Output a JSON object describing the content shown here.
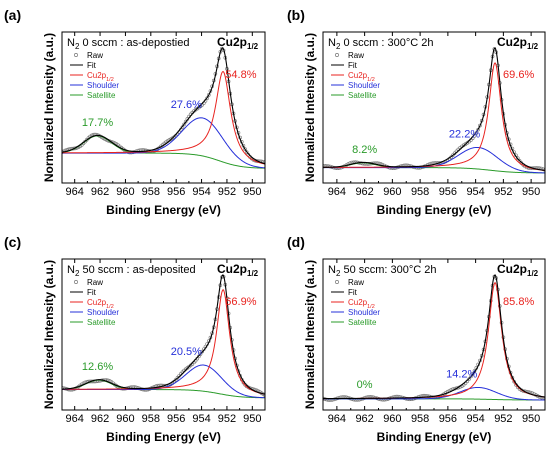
{
  "chart_data": [
    {
      "type": "line",
      "panel_label": "(a)",
      "condition": {
        "prefix": "N",
        "sub": "2",
        "rest": " 0 sccm : as-depostied"
      },
      "peak_title": {
        "base": "Cu2p",
        "sub": "1/2"
      },
      "xlabel": "Binding Energy (eV)",
      "ylabel": "Normalized Intensity (a.u.)",
      "xlim": [
        965,
        949
      ],
      "xticks": [
        "964",
        "962",
        "960",
        "958",
        "956",
        "954",
        "952",
        "950"
      ],
      "legend": [
        "Raw",
        "Fit",
        "Cu2p1/2",
        "Shoulder",
        "Satellite"
      ],
      "annotations": [
        {
          "text": "17.7%",
          "component": "Satellite",
          "x": 962.2
        },
        {
          "text": "27.6%",
          "component": "Shoulder",
          "x": 955.2
        },
        {
          "text": "54.8%",
          "component": "Cu2p1/2",
          "x": 950.9
        }
      ],
      "components": {
        "baseline": {
          "left": 0.22,
          "right": 0.05
        },
        "satellite": {
          "center": 962.2,
          "amplitude": 0.19,
          "width": 1.1
        },
        "shoulder": {
          "center": 953.9,
          "amplitude": 0.42,
          "width": 1.6
        },
        "main": {
          "center": 952.3,
          "amplitude": 1.0,
          "width": 0.72
        }
      }
    },
    {
      "type": "line",
      "panel_label": "(b)",
      "condition": {
        "prefix": "N",
        "sub": "2",
        "rest": " 0 sccm : 300°C 2h"
      },
      "peak_title": {
        "base": "Cu2p",
        "sub": "1/2"
      },
      "xlabel": "Binding Energy (eV)",
      "ylabel": "Normalized Intensity (a.u.)",
      "xlim": [
        965,
        949
      ],
      "xticks": [
        "964",
        "962",
        "960",
        "958",
        "956",
        "954",
        "952",
        "950"
      ],
      "legend": [
        "Raw",
        "Fit",
        "Cu2p1/2",
        "Shoulder",
        "Satellite"
      ],
      "annotations": [
        {
          "text": "8.2%",
          "component": "Satellite",
          "x": 962.0
        },
        {
          "text": "22.2%",
          "component": "Shoulder",
          "x": 954.8
        },
        {
          "text": "69.6%",
          "component": "Cu2p1/2",
          "x": 950.9
        }
      ],
      "components": {
        "baseline": {
          "left": 0.05,
          "right": 0.0
        },
        "satellite": {
          "center": 962.1,
          "amplitude": 0.045,
          "width": 0.9
        },
        "shoulder": {
          "center": 953.8,
          "amplitude": 0.2,
          "width": 1.4
        },
        "main": {
          "center": 952.6,
          "amplitude": 1.0,
          "width": 0.55
        }
      }
    },
    {
      "type": "line",
      "panel_label": "(c)",
      "condition": {
        "prefix": "N",
        "sub": "2",
        "rest": " 50 sccm : as-deposited"
      },
      "peak_title": {
        "base": "Cu2p",
        "sub": "1/2"
      },
      "xlabel": "Binding Energy (eV)",
      "ylabel": "Normalized Intensity (a.u.)",
      "xlim": [
        965,
        949
      ],
      "xticks": [
        "964",
        "962",
        "960",
        "958",
        "956",
        "954",
        "952",
        "950"
      ],
      "legend": [
        "Raw",
        "Fit",
        "Cu2p1/2",
        "Shoulder",
        "Satellite"
      ],
      "annotations": [
        {
          "text": "12.6%",
          "component": "Satellite",
          "x": 962.2
        },
        {
          "text": "20.5%",
          "component": "Shoulder",
          "x": 955.2
        },
        {
          "text": "66.9%",
          "component": "Cu2p1/2",
          "x": 950.9
        }
      ],
      "components": {
        "baseline": {
          "left": 0.1,
          "right": 0.02
        },
        "satellite": {
          "center": 962.1,
          "amplitude": 0.09,
          "width": 1.0
        },
        "shoulder": {
          "center": 953.8,
          "amplitude": 0.25,
          "width": 1.4
        },
        "main": {
          "center": 952.3,
          "amplitude": 1.0,
          "width": 0.62
        }
      }
    },
    {
      "type": "line",
      "panel_label": "(d)",
      "condition": {
        "prefix": "N",
        "sub": "2",
        "rest": " 50 sccm: 300°C 2h"
      },
      "peak_title": {
        "base": "Cu2p",
        "sub": "1/2"
      },
      "xlabel": "Binding Energy (eV)",
      "ylabel": "Normalized Intensity (a.u.)",
      "xlim": [
        965,
        949
      ],
      "xticks": [
        "964",
        "962",
        "960",
        "958",
        "956",
        "954",
        "952",
        "950"
      ],
      "legend": [
        "Raw",
        "Fit",
        "Cu2p1/2",
        "Shoulder",
        "Satellite"
      ],
      "annotations": [
        {
          "text": "0%",
          "component": "Satellite",
          "x": 962.0
        },
        {
          "text": "14.2%",
          "component": "Shoulder",
          "x": 955.0
        },
        {
          "text": "85.8%",
          "component": "Cu2p1/2",
          "x": 950.9
        }
      ],
      "components": {
        "baseline": {
          "left": 0.01,
          "right": 0.0
        },
        "satellite": {
          "center": 962.0,
          "amplitude": 0.0,
          "width": 1.0
        },
        "shoulder": {
          "center": 953.8,
          "amplitude": 0.1,
          "width": 1.3
        },
        "main": {
          "center": 952.6,
          "amplitude": 1.0,
          "width": 0.58
        }
      }
    }
  ],
  "colors": {
    "fit": "#000000",
    "main": "#e8231f",
    "shoulder": "#2630d9",
    "satellite": "#2a9b2a",
    "raw": "#777777",
    "annotation_main": "#e8231f",
    "annotation_shoulder": "#2630d9",
    "annotation_satellite": "#2a9b2a"
  }
}
